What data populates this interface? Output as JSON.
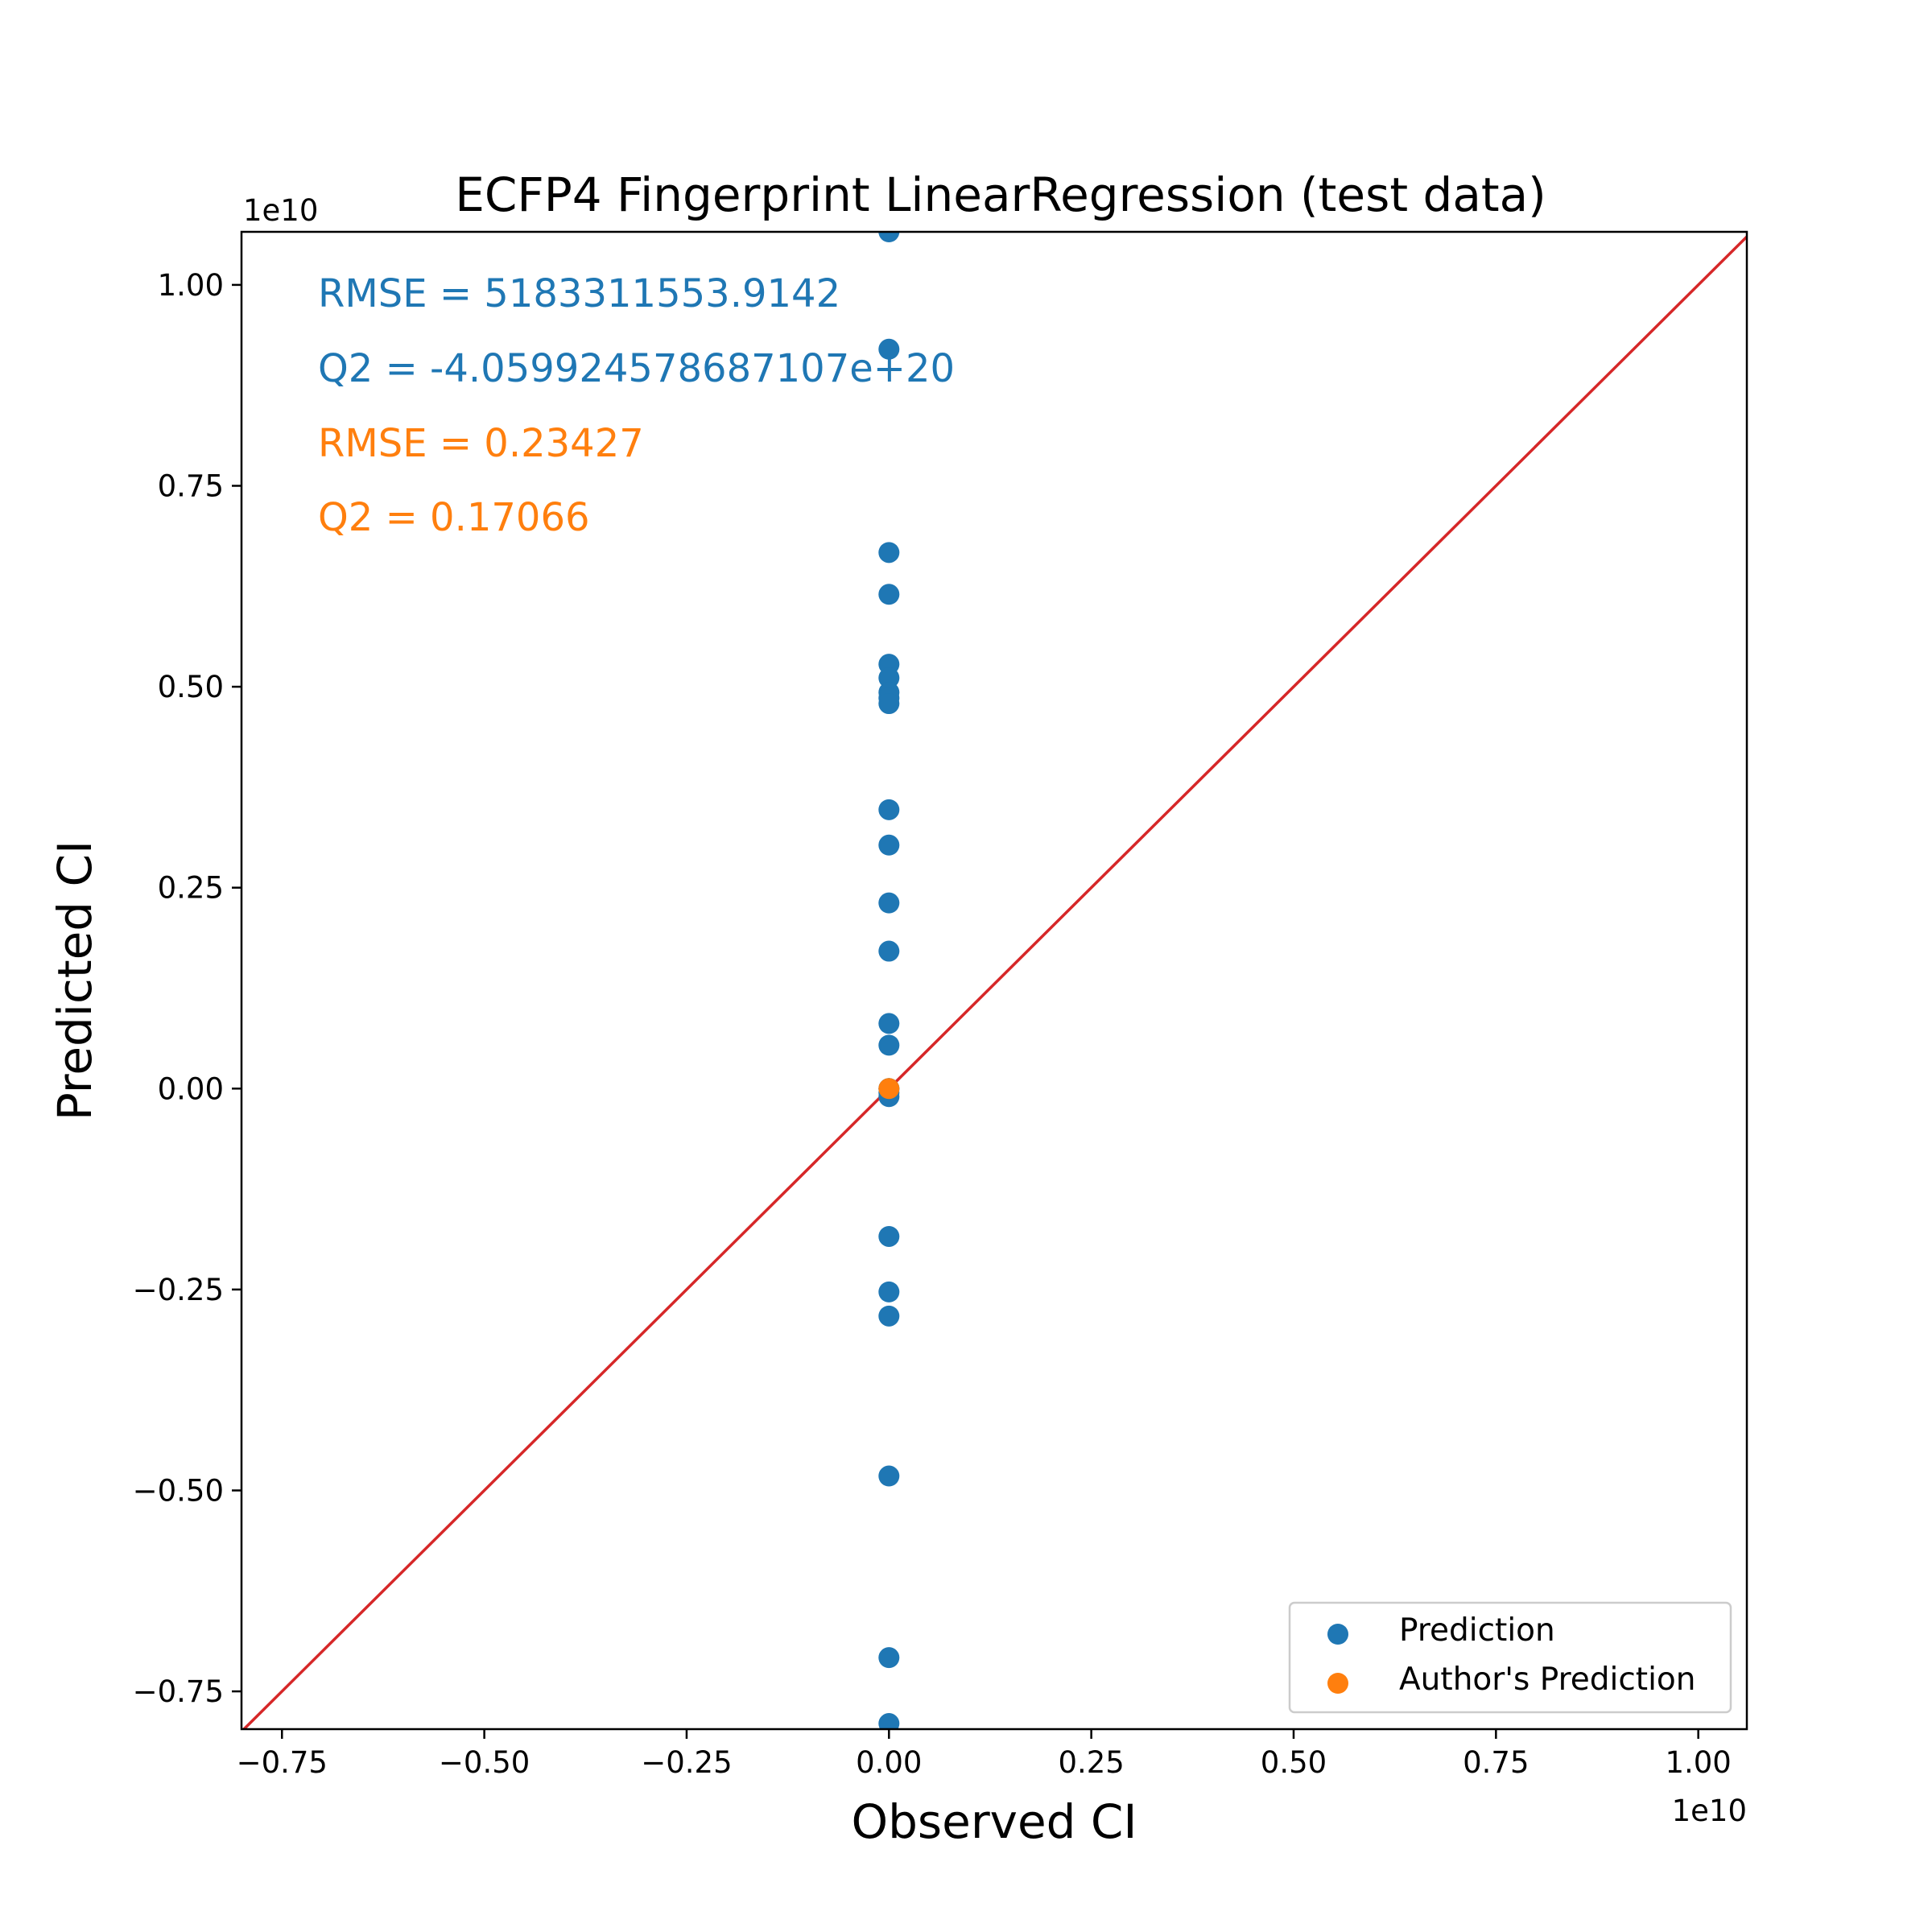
{
  "chart_data": {
    "type": "scatter",
    "title": "ECFP4 Fingerprint LinearRegression (test data)",
    "xlabel": "Observed CI",
    "ylabel": "Predicted CI",
    "x_offset_label": "1e10",
    "y_offset_label": "1e10",
    "xlim": [
      -0.8,
      1.06
    ],
    "ylim": [
      -0.797,
      1.066
    ],
    "xticks": [
      -0.75,
      -0.5,
      -0.25,
      0.0,
      0.25,
      0.5,
      0.75,
      1.0
    ],
    "xtick_labels": [
      "−0.75",
      "−0.50",
      "−0.25",
      "0.00",
      "0.25",
      "0.50",
      "0.75",
      "1.00"
    ],
    "yticks": [
      -0.75,
      -0.5,
      -0.25,
      0.0,
      0.25,
      0.5,
      0.75,
      1.0
    ],
    "ytick_labels": [
      "−0.75",
      "−0.50",
      "−0.25",
      "0.00",
      "0.25",
      "0.50",
      "0.75",
      "1.00"
    ],
    "grid": false,
    "legend_position": "lower-right",
    "series": [
      {
        "name": "Prediction",
        "color": "#1f77b4",
        "x": [
          0,
          0,
          0,
          0,
          0,
          0,
          0,
          0,
          0,
          0,
          0,
          0,
          0,
          0,
          0,
          0,
          0,
          0,
          0,
          0,
          0,
          0,
          0,
          0,
          0
        ],
        "y": [
          1.066,
          0.92,
          0.667,
          0.615,
          0.528,
          0.511,
          0.493,
          0.486,
          0.479,
          0.347,
          0.303,
          0.231,
          0.171,
          0.081,
          0.054,
          0.0,
          -0.01,
          -0.184,
          -0.253,
          -0.283,
          -0.482,
          -0.708,
          -0.79,
          0.0,
          -0.005
        ]
      },
      {
        "name": "Author's Prediction",
        "color": "#ff7f0e",
        "x": [
          0.0
        ],
        "y": [
          0.0
        ]
      }
    ],
    "reference_line": {
      "color": "#d62728",
      "from": [
        -0.8,
        -0.8
      ],
      "to": [
        1.06,
        1.06
      ]
    },
    "annotations": [
      {
        "text": "RMSE = 5183311553.9142",
        "color": "#1f77b4"
      },
      {
        "text": "Q2 = -4.059924578687107e+20",
        "color": "#1f77b4"
      },
      {
        "text": "RMSE = 0.23427",
        "color": "#ff7f0e"
      },
      {
        "text": "Q2 = 0.17066",
        "color": "#ff7f0e"
      }
    ]
  }
}
